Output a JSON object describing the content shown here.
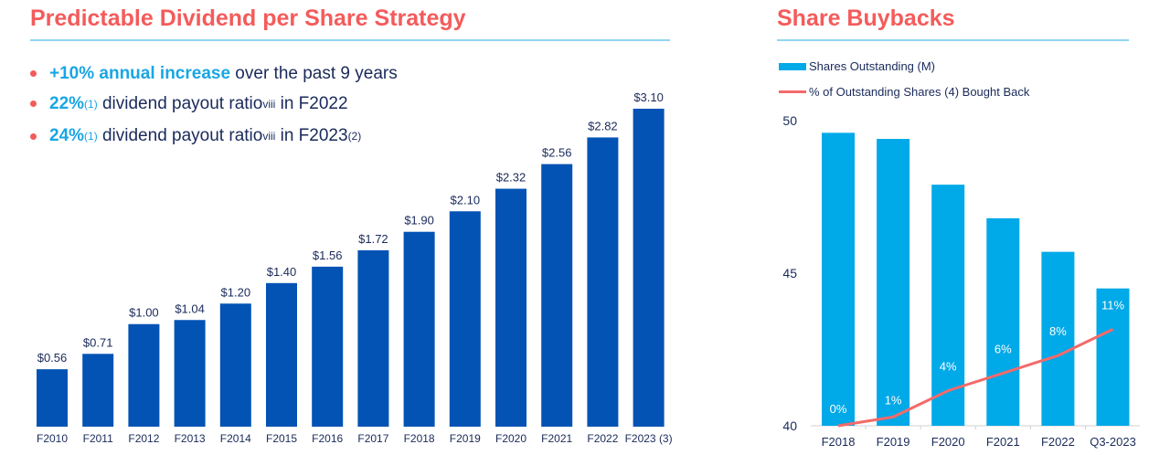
{
  "left": {
    "title": "Predictable Dividend per Share Strategy",
    "bullets": [
      {
        "highlight": "+10% annual increase",
        "text": " over the past 9 years"
      },
      {
        "highlight": "22%",
        "sup1": "(1)",
        "text": " dividend payout ratio",
        "sup2": "viii",
        "text2": " in F2022",
        "sup3": ""
      },
      {
        "highlight": "24%",
        "sup1": "(1)",
        "text": " dividend payout ratio",
        "sup2": "viii",
        "text2": " in F2023",
        "sup3": "(2)"
      }
    ]
  },
  "right": {
    "title": "Share Buybacks",
    "legend": [
      "Shares Outstanding (M)",
      "% of Outstanding Shares (4) Bought Back"
    ]
  },
  "chart_data": [
    {
      "type": "bar",
      "categories": [
        "F2010",
        "F2011",
        "F2012",
        "F2013",
        "F2014",
        "F2015",
        "F2016",
        "F2017",
        "F2018",
        "F2019",
        "F2020",
        "F2021",
        "F2022",
        "F2023 (3)"
      ],
      "values": [
        0.56,
        0.71,
        1.0,
        1.04,
        1.2,
        1.4,
        1.56,
        1.72,
        1.9,
        2.1,
        2.32,
        2.56,
        2.82,
        3.1
      ],
      "data_labels": [
        "$0.56",
        "$0.71",
        "$1.00",
        "$1.04",
        "$1.20",
        "$1.40",
        "$1.56",
        "$1.72",
        "$1.90",
        "$2.10",
        "$2.32",
        "$2.56",
        "$2.82",
        "$3.10"
      ],
      "ylim": [
        0,
        3.1
      ],
      "color": "#0353b5",
      "grid": false
    },
    {
      "type": "bar",
      "categories": [
        "F2018",
        "F2019",
        "F2020",
        "F2021",
        "F2022",
        "Q3-2023"
      ],
      "series": [
        {
          "name": "Shares Outstanding (M)",
          "type": "bar",
          "values": [
            49.6,
            49.4,
            47.9,
            46.8,
            45.7,
            44.5
          ],
          "color": "#00a9e8"
        },
        {
          "name": "% of Outstanding Shares (4) Bought Back",
          "type": "line",
          "values": [
            0,
            1,
            4,
            6,
            8,
            11
          ],
          "data_labels": [
            "0%",
            "1%",
            "4%",
            "6%",
            "8%",
            "11%"
          ],
          "color": "#f46a6a"
        }
      ],
      "ylim": [
        40,
        50
      ],
      "yticks": [
        "40",
        "45",
        "50"
      ],
      "grid": false
    }
  ]
}
